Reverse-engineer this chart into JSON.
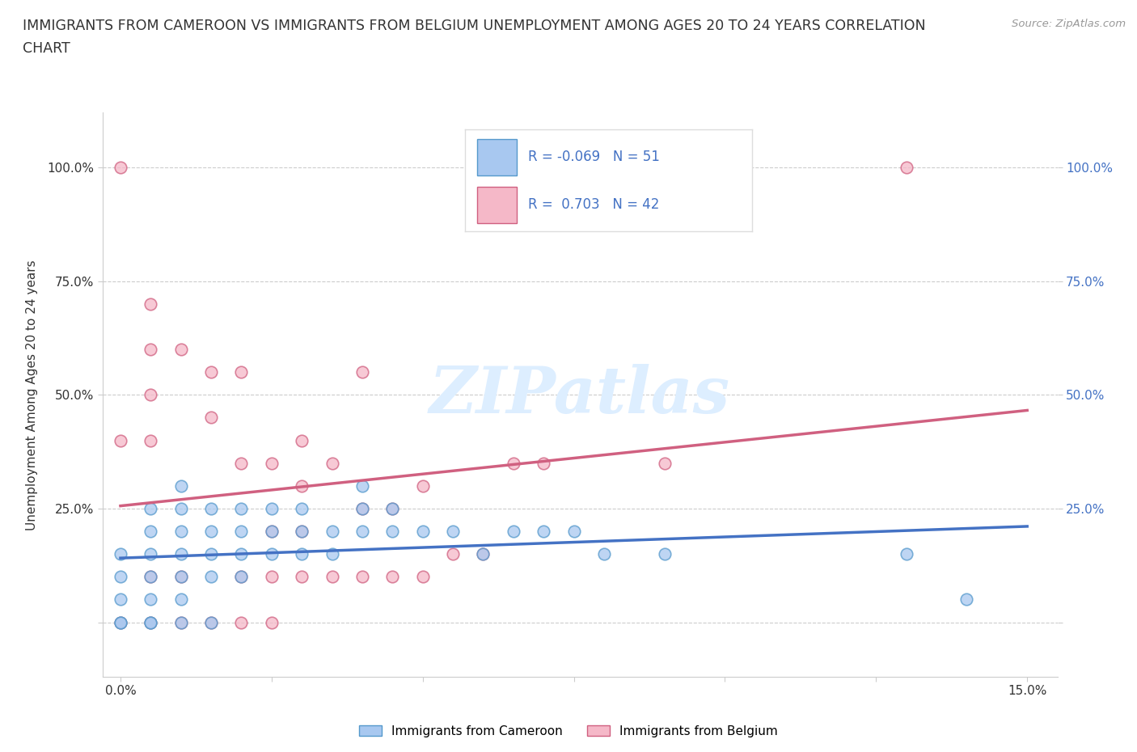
{
  "title_line1": "IMMIGRANTS FROM CAMEROON VS IMMIGRANTS FROM BELGIUM UNEMPLOYMENT AMONG AGES 20 TO 24 YEARS CORRELATION",
  "title_line2": "CHART",
  "source_text": "Source: ZipAtlas.com",
  "ylabel": "Unemployment Among Ages 20 to 24 years",
  "R_cameroon": -0.069,
  "N_cameroon": 51,
  "R_belgium": 0.703,
  "N_belgium": 42,
  "color_cameroon_fill": "#a8c8f0",
  "color_cameroon_edge": "#5599cc",
  "color_cameroon_line": "#4472C4",
  "color_belgium_fill": "#f5b8c8",
  "color_belgium_edge": "#d06080",
  "color_belgium_line": "#d06080",
  "color_text_blue": "#4472C4",
  "color_text_dark": "#333333",
  "color_source": "#999999",
  "watermark": "ZIPatlas",
  "background_color": "#ffffff",
  "grid_color": "#cccccc",
  "cameroon_x": [
    0.0,
    0.0,
    0.0,
    0.0,
    0.0,
    0.005,
    0.005,
    0.005,
    0.005,
    0.005,
    0.005,
    0.005,
    0.01,
    0.01,
    0.01,
    0.01,
    0.01,
    0.01,
    0.01,
    0.015,
    0.015,
    0.015,
    0.015,
    0.015,
    0.02,
    0.02,
    0.02,
    0.02,
    0.025,
    0.025,
    0.025,
    0.03,
    0.03,
    0.03,
    0.035,
    0.035,
    0.04,
    0.04,
    0.04,
    0.045,
    0.045,
    0.05,
    0.055,
    0.06,
    0.065,
    0.07,
    0.075,
    0.08,
    0.09,
    0.13,
    0.14
  ],
  "cameroon_y": [
    0.0,
    0.0,
    0.05,
    0.1,
    0.15,
    0.0,
    0.0,
    0.05,
    0.1,
    0.15,
    0.2,
    0.25,
    0.0,
    0.05,
    0.1,
    0.15,
    0.2,
    0.25,
    0.3,
    0.0,
    0.1,
    0.15,
    0.2,
    0.25,
    0.1,
    0.15,
    0.2,
    0.25,
    0.15,
    0.2,
    0.25,
    0.15,
    0.2,
    0.25,
    0.15,
    0.2,
    0.2,
    0.25,
    0.3,
    0.2,
    0.25,
    0.2,
    0.2,
    0.15,
    0.2,
    0.2,
    0.2,
    0.15,
    0.15,
    0.15,
    0.05
  ],
  "belgium_x": [
    0.0,
    0.0,
    0.0,
    0.005,
    0.005,
    0.005,
    0.005,
    0.005,
    0.005,
    0.01,
    0.01,
    0.01,
    0.015,
    0.015,
    0.015,
    0.02,
    0.02,
    0.02,
    0.02,
    0.025,
    0.025,
    0.025,
    0.025,
    0.03,
    0.03,
    0.03,
    0.03,
    0.035,
    0.035,
    0.04,
    0.04,
    0.04,
    0.045,
    0.045,
    0.05,
    0.05,
    0.055,
    0.06,
    0.065,
    0.07,
    0.09,
    0.13
  ],
  "belgium_y": [
    0.0,
    0.4,
    1.0,
    0.0,
    0.1,
    0.4,
    0.5,
    0.6,
    0.7,
    0.0,
    0.1,
    0.6,
    0.0,
    0.45,
    0.55,
    0.0,
    0.1,
    0.35,
    0.55,
    0.0,
    0.1,
    0.2,
    0.35,
    0.1,
    0.2,
    0.3,
    0.4,
    0.1,
    0.35,
    0.1,
    0.25,
    0.55,
    0.1,
    0.25,
    0.1,
    0.3,
    0.15,
    0.15,
    0.35,
    0.35,
    0.35,
    1.0
  ],
  "xlim": [
    -0.003,
    0.155
  ],
  "ylim": [
    -0.12,
    1.12
  ],
  "ytick_vals": [
    0.0,
    0.25,
    0.5,
    0.75,
    1.0
  ],
  "ytick_left_labels": [
    "",
    "25.0%",
    "50.0%",
    "75.0%",
    "100.0%"
  ],
  "ytick_right_labels": [
    "",
    "25.0%",
    "50.0%",
    "75.0%",
    "100.0%"
  ],
  "xtick_vals": [
    0.0,
    0.025,
    0.05,
    0.075,
    0.1,
    0.125,
    0.15
  ],
  "xtick_labels": [
    "0.0%",
    "",
    "",
    "",
    "",
    "",
    "15.0%"
  ]
}
